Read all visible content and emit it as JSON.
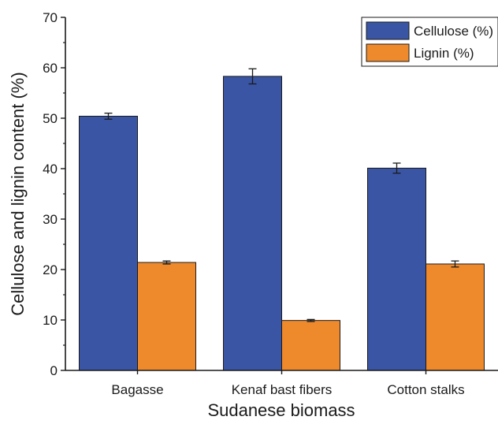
{
  "chart_data": {
    "type": "bar",
    "title": "",
    "xlabel": "Sudanese biomass",
    "ylabel": "Cellulose and lignin content (%)",
    "ylim": [
      0,
      70
    ],
    "yticks": [
      "0",
      "10",
      "20",
      "30",
      "40",
      "50",
      "60",
      "70"
    ],
    "categories": [
      "Bagasse",
      "Kenaf bast fibers",
      "Cotton stalks"
    ],
    "series": [
      {
        "name": "Cellulose (%)",
        "color": "#3a55a4",
        "values": [
          50.4,
          58.3,
          40.1
        ],
        "errors": [
          0.6,
          1.5,
          1.0
        ]
      },
      {
        "name": "Lignin (%)",
        "color": "#ef8a2c",
        "values": [
          21.4,
          9.9,
          21.1
        ],
        "errors": [
          0.3,
          0.2,
          0.6
        ]
      }
    ],
    "legend_position": "top-right",
    "grid": false
  }
}
